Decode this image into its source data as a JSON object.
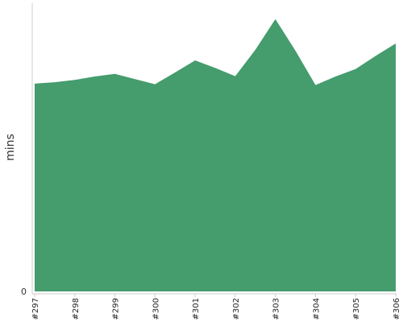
{
  "chart_data": {
    "type": "area",
    "categories": [
      "#297",
      "#298",
      "#299",
      "#300",
      "#301",
      "#302",
      "#303",
      "#304",
      "#305",
      "#306"
    ],
    "x": [
      0,
      0.5,
      1,
      1.5,
      2,
      2.5,
      3,
      3.5,
      4,
      4.5,
      5,
      5.5,
      6,
      6.5,
      7,
      7.5,
      8,
      8.5,
      9
    ],
    "series": [
      {
        "values": [
          72.5,
          73,
          73.8,
          75,
          75.9,
          74.1,
          72.3,
          76.4,
          80.6,
          78,
          75.1,
          84.3,
          95,
          84,
          72,
          75,
          77.6,
          82.2,
          86.5
        ],
        "color": "#459c6d"
      }
    ],
    "ytick_labels": [
      "0"
    ],
    "ylim": [
      0,
      100
    ],
    "ylabel": "mins",
    "xlabel": "",
    "title": "",
    "grid": false,
    "legend": "none"
  }
}
